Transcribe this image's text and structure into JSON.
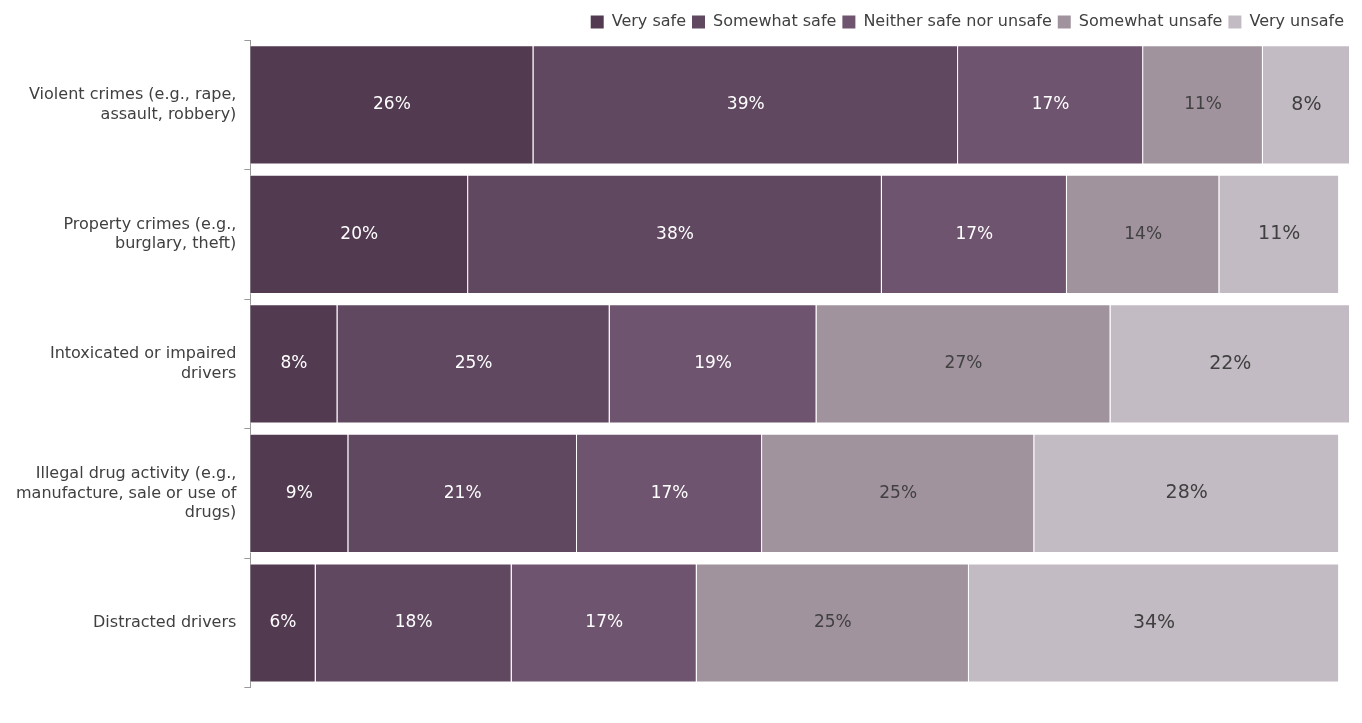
{
  "chart_data": {
    "type": "bar",
    "orientation": "horizontal",
    "stacked": true,
    "legend": "top right",
    "grid": false,
    "categories": [
      "Violent crimes (e.g., rape, assault, robbery)",
      "Property crimes (e.g., burglary, theft)",
      "Intoxicated or impaired drivers",
      "Illegal drug activity (e.g., manufacture, sale or use of drugs)",
      "Distracted drivers"
    ],
    "series": [
      {
        "name": "Very safe",
        "color": "#523a50",
        "values": [
          26,
          20,
          8,
          9,
          6
        ],
        "value_labels": [
          "26%",
          "20%",
          "8%",
          "9%",
          "6%"
        ]
      },
      {
        "name": "Somewhat safe",
        "color": "#604860",
        "values": [
          39,
          38,
          25,
          21,
          18
        ],
        "value_labels": [
          "39%",
          "38%",
          "25%",
          "21%",
          "18%"
        ]
      },
      {
        "name": "Neither safe nor unsafe",
        "color": "#6e546e",
        "values": [
          17,
          17,
          19,
          17,
          17
        ],
        "value_labels": [
          "17%",
          "17%",
          "19%",
          "17%",
          "17%"
        ]
      },
      {
        "name": "Somewhat unsafe",
        "color": "#a0939e",
        "values": [
          11,
          14,
          27,
          25,
          25
        ],
        "value_labels": [
          "11%",
          "14%",
          "27%",
          "25%",
          "25%"
        ]
      },
      {
        "name": "Very unsafe",
        "color": "#c3bbc3",
        "values": [
          8,
          11,
          22,
          28,
          34
        ],
        "value_labels": [
          "8%",
          "11%",
          "22%",
          "28%",
          "34%"
        ]
      }
    ]
  }
}
